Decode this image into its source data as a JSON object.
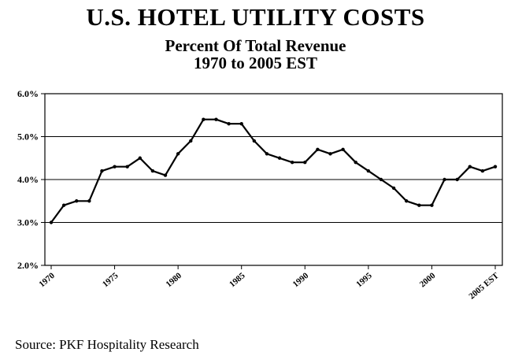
{
  "chart_data": {
    "type": "line",
    "title": "U.S. HOTEL UTILITY COSTS",
    "subtitle": [
      "Percent Of Total Revenue",
      "1970 to 2005 EST"
    ],
    "xlabel": "",
    "ylabel": "",
    "x": [
      1970,
      1971,
      1972,
      1973,
      1974,
      1975,
      1976,
      1977,
      1978,
      1979,
      1980,
      1981,
      1982,
      1983,
      1984,
      1985,
      1986,
      1987,
      1988,
      1989,
      1990,
      1991,
      1992,
      1993,
      1994,
      1995,
      1996,
      1997,
      1998,
      1999,
      2000,
      2001,
      2002,
      2003,
      2004,
      2005
    ],
    "series": [
      {
        "values": [
          3.0,
          3.4,
          3.5,
          3.5,
          4.2,
          4.3,
          4.3,
          4.5,
          4.2,
          4.1,
          4.6,
          4.9,
          5.4,
          5.4,
          5.3,
          5.3,
          4.9,
          4.6,
          4.5,
          4.4,
          4.4,
          4.7,
          4.6,
          4.7,
          4.4,
          4.2,
          4.0,
          3.8,
          3.5,
          3.4,
          3.4,
          4.0,
          4.0,
          4.3,
          4.2,
          4.3
        ]
      }
    ],
    "x_ticks": [
      "1970",
      "1975",
      "1980",
      "1985",
      "1990",
      "1995",
      "2000",
      "2005 EST"
    ],
    "y_ticks": [
      "2.0%",
      "3.0%",
      "4.0%",
      "5.0%",
      "6.0%"
    ],
    "ylim": [
      2.0,
      6.0
    ],
    "xlim": [
      1970,
      2005
    ],
    "grid": "horizontal",
    "legend": "none",
    "colors": {
      "line": "#000000",
      "grid": "#000000",
      "frame": "#000000"
    }
  },
  "source": "Source: PKF Hospitality Research"
}
